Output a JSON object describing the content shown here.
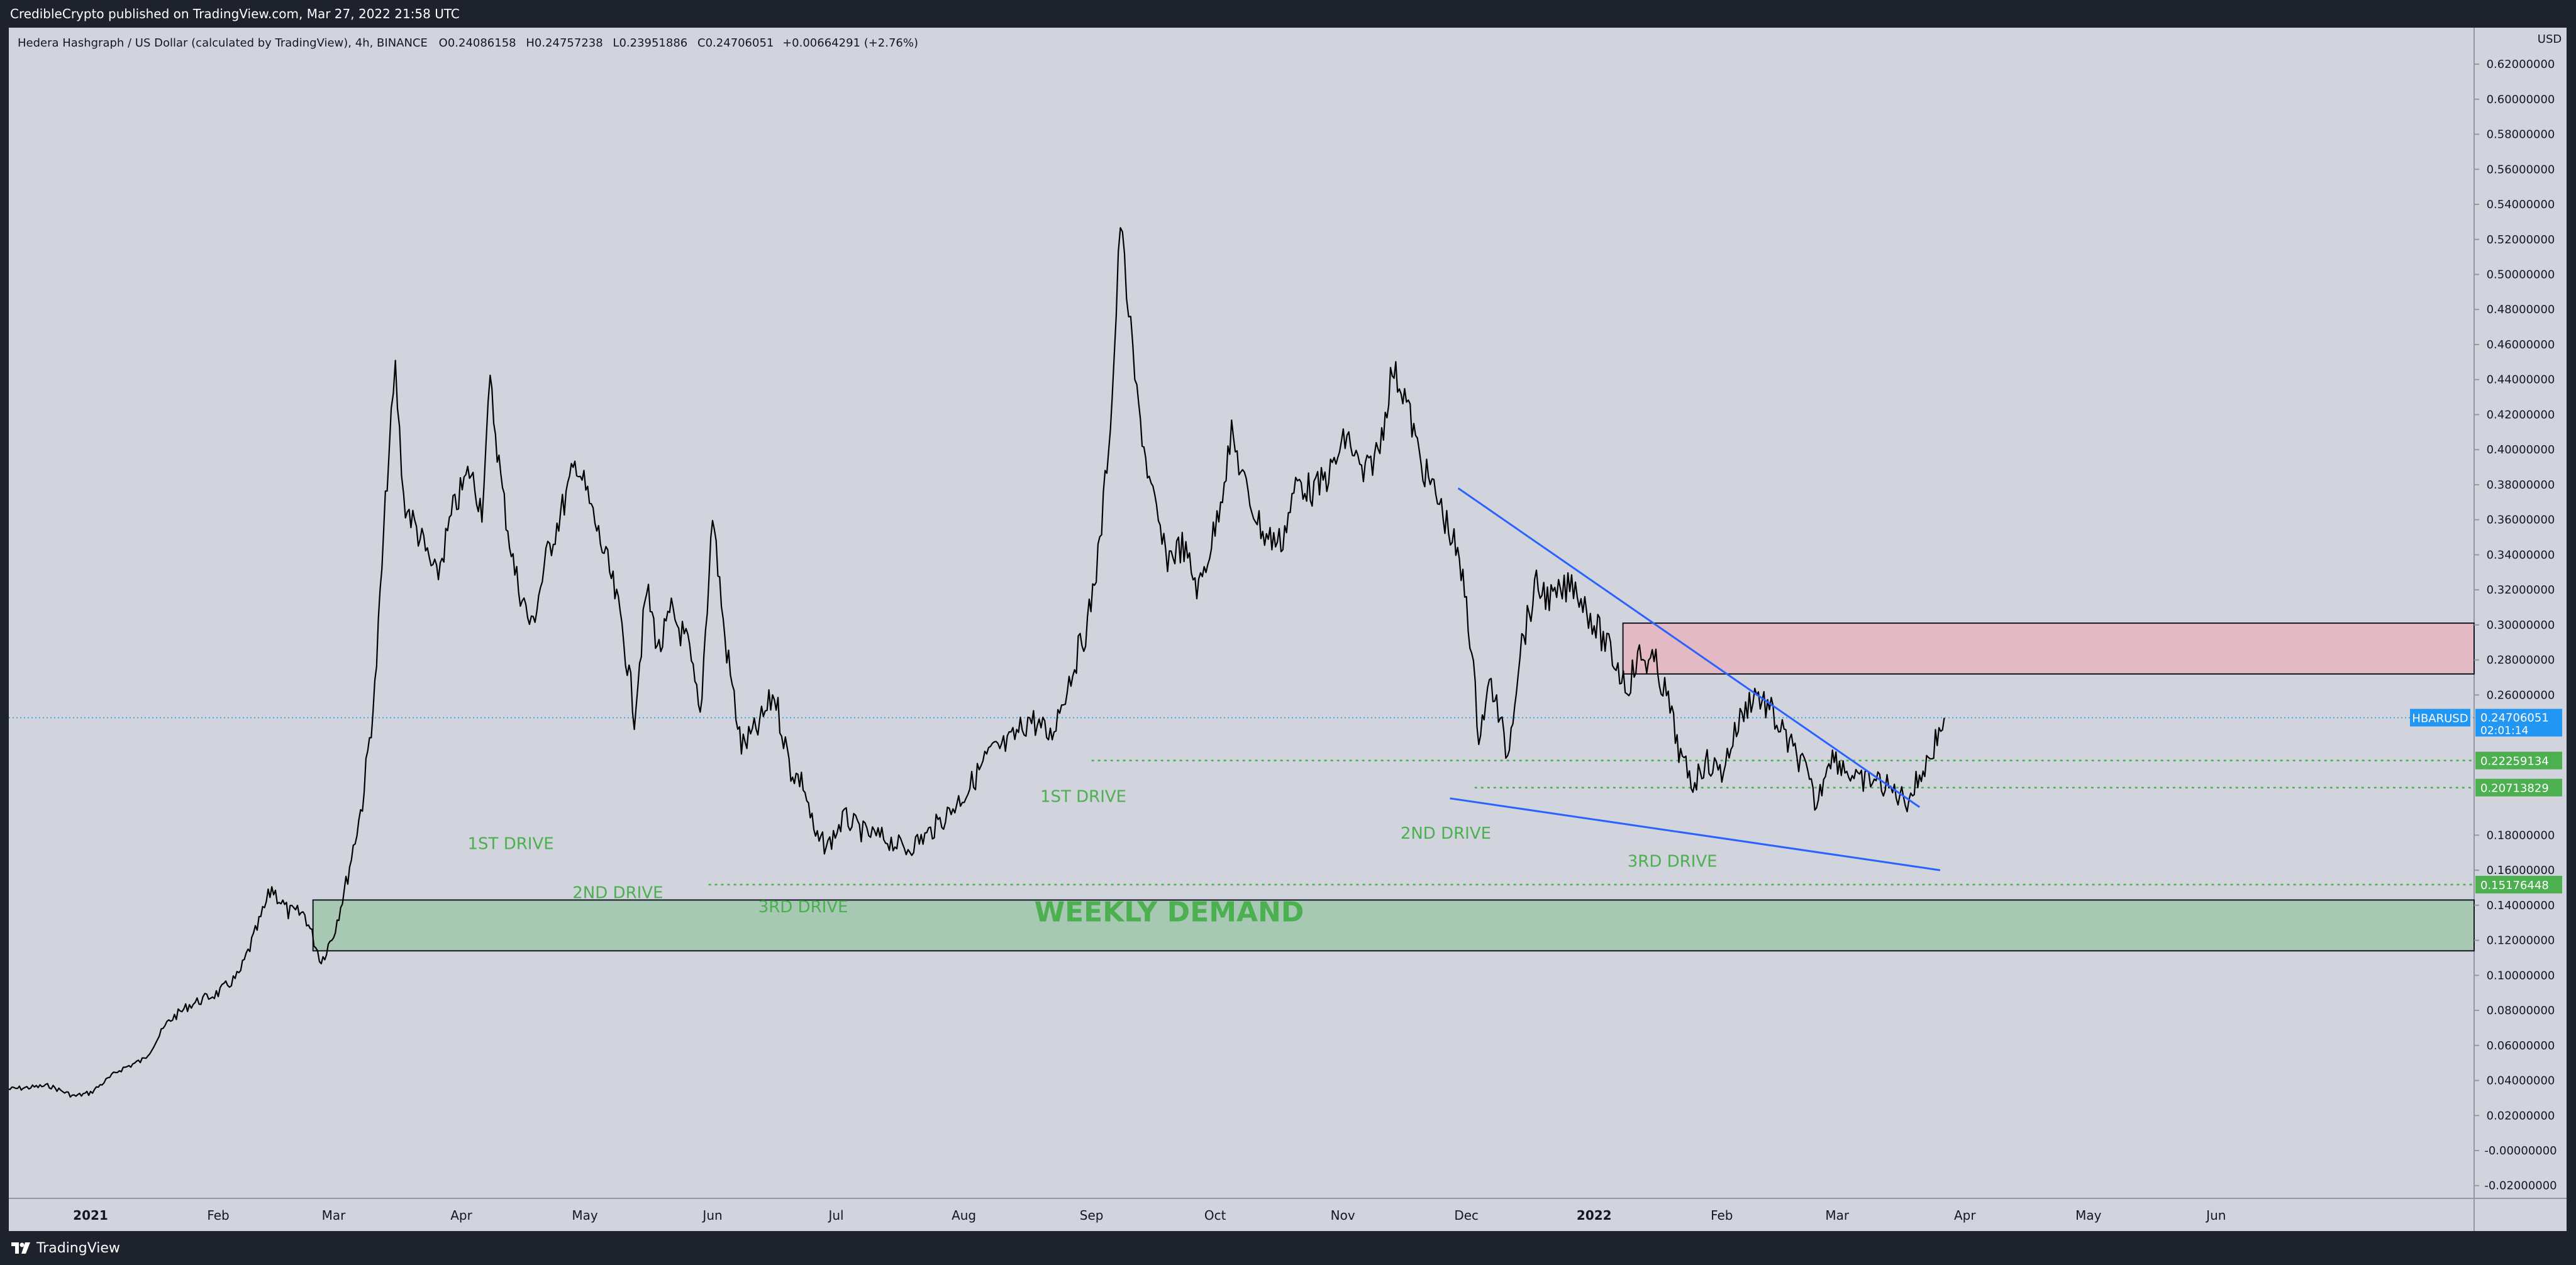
{
  "header": {
    "published_line": "CredibleCrypto published on TradingView.com, Mar 27, 2022 21:58 UTC"
  },
  "footer": {
    "brand": "TradingView",
    "logo_icon": "tradingview-logo-icon"
  },
  "colors": {
    "background": "#d1d4dc",
    "frame": "#1e222d",
    "candles": "#000000",
    "demand_zone": "#a7c9b3",
    "supply_zone": "#e3b9c3",
    "drive_label": "#4caf50",
    "trendline": "#2962ff",
    "price_badge": "#2196f3",
    "level_badge": "#4caf50"
  },
  "chart_data": {
    "type": "candlestick",
    "legend": {
      "symbol_name": "Hedera Hashgraph / US Dollar (calculated by TradingView), 4h, BINANCE",
      "o_label": "O",
      "open": "0.24086158",
      "h_label": "H",
      "high": "0.24757238",
      "l_label": "L",
      "low": "0.23951886",
      "c_label": "C",
      "close": "0.24706051",
      "change": "+0.00664291 (+2.76%)"
    },
    "y_unit": "USD",
    "ylim": [
      -0.026,
      0.64
    ],
    "y_ticks": [
      {
        "v": 0.62,
        "label": "0.62000000"
      },
      {
        "v": 0.6,
        "label": "0.60000000"
      },
      {
        "v": 0.58,
        "label": "0.58000000"
      },
      {
        "v": 0.56,
        "label": "0.56000000"
      },
      {
        "v": 0.54,
        "label": "0.54000000"
      },
      {
        "v": 0.52,
        "label": "0.52000000"
      },
      {
        "v": 0.5,
        "label": "0.50000000"
      },
      {
        "v": 0.48,
        "label": "0.48000000"
      },
      {
        "v": 0.46,
        "label": "0.46000000"
      },
      {
        "v": 0.44,
        "label": "0.44000000"
      },
      {
        "v": 0.42,
        "label": "0.42000000"
      },
      {
        "v": 0.4,
        "label": "0.40000000"
      },
      {
        "v": 0.38,
        "label": "0.38000000"
      },
      {
        "v": 0.36,
        "label": "0.36000000"
      },
      {
        "v": 0.34,
        "label": "0.34000000"
      },
      {
        "v": 0.32,
        "label": "0.32000000"
      },
      {
        "v": 0.3,
        "label": "0.30000000"
      },
      {
        "v": 0.28,
        "label": "0.28000000"
      },
      {
        "v": 0.26,
        "label": "0.26000000"
      },
      {
        "v": 0.18,
        "label": "0.18000000"
      },
      {
        "v": 0.16,
        "label": "0.16000000"
      },
      {
        "v": 0.14,
        "label": "0.14000000"
      },
      {
        "v": 0.12,
        "label": "0.12000000"
      },
      {
        "v": 0.1,
        "label": "0.10000000"
      },
      {
        "v": 0.08,
        "label": "0.08000000"
      },
      {
        "v": 0.06,
        "label": "0.06000000"
      },
      {
        "v": 0.04,
        "label": "0.04000000"
      },
      {
        "v": 0.02,
        "label": "0.02000000"
      },
      {
        "v": 0.0,
        "label": "-0.00000000"
      },
      {
        "v": -0.02,
        "label": "-0.02000000"
      }
    ],
    "x_ticks": [
      {
        "t": "2021-01-01",
        "label": "2021",
        "bold": true
      },
      {
        "t": "2021-02-01",
        "label": "Feb"
      },
      {
        "t": "2021-03-01",
        "label": "Mar"
      },
      {
        "t": "2021-04-01",
        "label": "Apr"
      },
      {
        "t": "2021-05-01",
        "label": "May"
      },
      {
        "t": "2021-06-01",
        "label": "Jun"
      },
      {
        "t": "2021-07-01",
        "label": "Jul"
      },
      {
        "t": "2021-08-01",
        "label": "Aug"
      },
      {
        "t": "2021-09-01",
        "label": "Sep"
      },
      {
        "t": "2021-10-01",
        "label": "Oct"
      },
      {
        "t": "2021-11-01",
        "label": "Nov"
      },
      {
        "t": "2021-12-01",
        "label": "Dec"
      },
      {
        "t": "2022-01-01",
        "label": "2022",
        "bold": true
      },
      {
        "t": "2022-02-01",
        "label": "Feb"
      },
      {
        "t": "2022-03-01",
        "label": "Mar"
      },
      {
        "t": "2022-04-01",
        "label": "Apr"
      },
      {
        "t": "2022-05-01",
        "label": "May"
      },
      {
        "t": "2022-06-01",
        "label": "Jun"
      }
    ],
    "price_path": [
      [
        "2020-12-12",
        0.035
      ],
      [
        "2020-12-22",
        0.037
      ],
      [
        "2020-12-28",
        0.031
      ],
      [
        "2021-01-01",
        0.033
      ],
      [
        "2021-01-08",
        0.046
      ],
      [
        "2021-01-14",
        0.052
      ],
      [
        "2021-01-20",
        0.074
      ],
      [
        "2021-01-25",
        0.083
      ],
      [
        "2021-02-01",
        0.09
      ],
      [
        "2021-02-06",
        0.1
      ],
      [
        "2021-02-10",
        0.124
      ],
      [
        "2021-02-14",
        0.15
      ],
      [
        "2021-02-18",
        0.136
      ],
      [
        "2021-02-22",
        0.135
      ],
      [
        "2021-02-26",
        0.108
      ],
      [
        "2021-03-01",
        0.124
      ],
      [
        "2021-03-04",
        0.152
      ],
      [
        "2021-03-08",
        0.199
      ],
      [
        "2021-03-11",
        0.262
      ],
      [
        "2021-03-14",
        0.385
      ],
      [
        "2021-03-16",
        0.445
      ],
      [
        "2021-03-18",
        0.371
      ],
      [
        "2021-03-22",
        0.35
      ],
      [
        "2021-03-26",
        0.326
      ],
      [
        "2021-03-30",
        0.365
      ],
      [
        "2021-04-03",
        0.388
      ],
      [
        "2021-04-06",
        0.367
      ],
      [
        "2021-04-08",
        0.437
      ],
      [
        "2021-04-11",
        0.375
      ],
      [
        "2021-04-14",
        0.33
      ],
      [
        "2021-04-18",
        0.298
      ],
      [
        "2021-04-22",
        0.341
      ],
      [
        "2021-04-26",
        0.37
      ],
      [
        "2021-04-29",
        0.394
      ],
      [
        "2021-05-03",
        0.362
      ],
      [
        "2021-05-07",
        0.33
      ],
      [
        "2021-05-10",
        0.3
      ],
      [
        "2021-05-13",
        0.249
      ],
      [
        "2021-05-16",
        0.32
      ],
      [
        "2021-05-19",
        0.285
      ],
      [
        "2021-05-22",
        0.307
      ],
      [
        "2021-05-26",
        0.288
      ],
      [
        "2021-05-29",
        0.247
      ],
      [
        "2021-06-01",
        0.364
      ],
      [
        "2021-06-04",
        0.292
      ],
      [
        "2021-06-08",
        0.23
      ],
      [
        "2021-06-12",
        0.241
      ],
      [
        "2021-06-16",
        0.261
      ],
      [
        "2021-06-20",
        0.217
      ],
      [
        "2021-06-23",
        0.21
      ],
      [
        "2021-06-26",
        0.178
      ],
      [
        "2021-06-29",
        0.174
      ],
      [
        "2021-07-03",
        0.19
      ],
      [
        "2021-07-08",
        0.181
      ],
      [
        "2021-07-13",
        0.178
      ],
      [
        "2021-07-18",
        0.172
      ],
      [
        "2021-07-23",
        0.18
      ],
      [
        "2021-07-28",
        0.192
      ],
      [
        "2021-08-02",
        0.206
      ],
      [
        "2021-08-07",
        0.226
      ],
      [
        "2021-08-12",
        0.232
      ],
      [
        "2021-08-17",
        0.247
      ],
      [
        "2021-08-22",
        0.236
      ],
      [
        "2021-08-27",
        0.272
      ],
      [
        "2021-08-31",
        0.3
      ],
      [
        "2021-09-03",
        0.345
      ],
      [
        "2021-09-06",
        0.429
      ],
      [
        "2021-09-08",
        0.531
      ],
      [
        "2021-09-10",
        0.479
      ],
      [
        "2021-09-12",
        0.43
      ],
      [
        "2021-09-15",
        0.382
      ],
      [
        "2021-09-19",
        0.338
      ],
      [
        "2021-09-23",
        0.345
      ],
      [
        "2021-09-27",
        0.32
      ],
      [
        "2021-10-01",
        0.355
      ],
      [
        "2021-10-05",
        0.408
      ],
      [
        "2021-10-09",
        0.373
      ],
      [
        "2021-10-13",
        0.351
      ],
      [
        "2021-10-17",
        0.347
      ],
      [
        "2021-10-21",
        0.382
      ],
      [
        "2021-10-25",
        0.376
      ],
      [
        "2021-10-29",
        0.387
      ],
      [
        "2021-11-02",
        0.408
      ],
      [
        "2021-11-06",
        0.384
      ],
      [
        "2021-11-10",
        0.402
      ],
      [
        "2021-11-13",
        0.446
      ],
      [
        "2021-11-16",
        0.432
      ],
      [
        "2021-11-20",
        0.392
      ],
      [
        "2021-11-24",
        0.372
      ],
      [
        "2021-11-28",
        0.346
      ],
      [
        "2021-12-01",
        0.316
      ],
      [
        "2021-12-04",
        0.238
      ],
      [
        "2021-12-07",
        0.268
      ],
      [
        "2021-12-11",
        0.225
      ],
      [
        "2021-12-14",
        0.286
      ],
      [
        "2021-12-18",
        0.322
      ],
      [
        "2021-12-22",
        0.314
      ],
      [
        "2021-12-27",
        0.324
      ],
      [
        "2022-01-01",
        0.301
      ],
      [
        "2022-01-05",
        0.284
      ],
      [
        "2022-01-09",
        0.265
      ],
      [
        "2022-01-12",
        0.282
      ],
      [
        "2022-01-16",
        0.277
      ],
      [
        "2022-01-19",
        0.256
      ],
      [
        "2022-01-22",
        0.224
      ],
      [
        "2022-01-25",
        0.209
      ],
      [
        "2022-01-28",
        0.222
      ],
      [
        "2022-02-01",
        0.216
      ],
      [
        "2022-02-05",
        0.244
      ],
      [
        "2022-02-09",
        0.262
      ],
      [
        "2022-02-13",
        0.25
      ],
      [
        "2022-02-17",
        0.233
      ],
      [
        "2022-02-21",
        0.219
      ],
      [
        "2022-02-24",
        0.196
      ],
      [
        "2022-02-27",
        0.226
      ],
      [
        "2022-03-02",
        0.221
      ],
      [
        "2022-03-06",
        0.21
      ],
      [
        "2022-03-10",
        0.212
      ],
      [
        "2022-03-14",
        0.206
      ],
      [
        "2022-03-18",
        0.2
      ],
      [
        "2022-03-21",
        0.213
      ],
      [
        "2022-03-24",
        0.228
      ],
      [
        "2022-03-27",
        0.247
      ]
    ],
    "levels": [
      {
        "v": 0.24706051,
        "label": "0.24706051",
        "tag": "HBARUSD",
        "countdown": "02:01:14",
        "kind": "current"
      },
      {
        "v": 0.22259134,
        "label": "0.22259134",
        "from": "2021-09-01",
        "kind": "level"
      },
      {
        "v": 0.20713829,
        "label": "0.20713829",
        "from": "2021-12-03",
        "kind": "level"
      },
      {
        "v": 0.15176448,
        "label": "0.15176448",
        "from": "2021-05-31",
        "kind": "level"
      }
    ],
    "zones": [
      {
        "name": "weekly-demand",
        "from": "2021-02-24",
        "y0": 0.114,
        "y1": 0.143,
        "label": "WEEKLY DEMAND"
      },
      {
        "name": "supply",
        "from": "2022-01-08",
        "y0": 0.272,
        "y1": 0.301
      }
    ],
    "trendlines": [
      {
        "name": "upper",
        "from": [
          "2021-11-29",
          0.378
        ],
        "to": [
          "2022-03-21",
          0.196
        ]
      },
      {
        "name": "lower",
        "from": [
          "2021-11-27",
          0.201
        ],
        "to": [
          "2022-03-26",
          0.16
        ]
      }
    ],
    "annotations": [
      {
        "text": "1ST DRIVE",
        "t": "2021-04-13",
        "v": 0.172
      },
      {
        "text": "2ND DRIVE",
        "t": "2021-05-09",
        "v": 0.144
      },
      {
        "text": "3RD DRIVE",
        "t": "2021-06-23",
        "v": 0.136
      },
      {
        "text": "1ST DRIVE",
        "t": "2021-08-30",
        "v": 0.199
      },
      {
        "text": "2ND DRIVE",
        "t": "2021-11-26",
        "v": 0.178
      },
      {
        "text": "3RD DRIVE",
        "t": "2022-01-20",
        "v": 0.162
      }
    ]
  }
}
